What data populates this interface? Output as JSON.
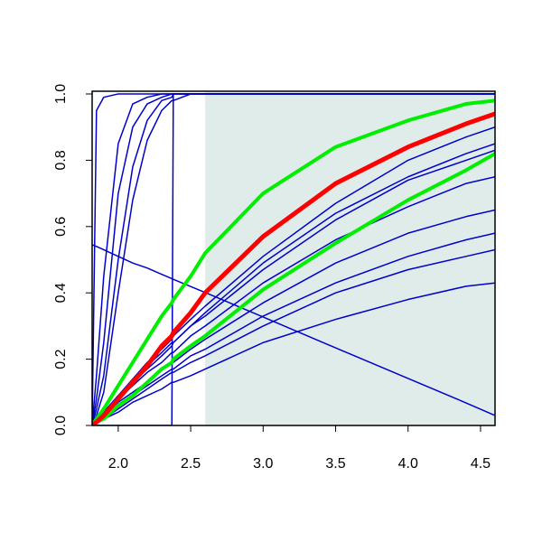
{
  "chart_data": {
    "type": "line",
    "x": [
      1.82,
      1.85,
      1.9,
      2.0,
      2.1,
      2.2,
      2.3,
      2.37,
      2.38,
      2.5,
      2.6,
      3.0,
      3.5,
      4.0,
      4.4,
      4.6
    ],
    "xlim": [
      1.82,
      4.6
    ],
    "ylim": [
      0,
      1
    ],
    "xticks": [
      {
        "value": 2,
        "label": "2.0"
      },
      2.5,
      {
        "value": 3,
        "label": "3.0"
      },
      3.5,
      {
        "value": 4,
        "label": "4.0"
      },
      4.5
    ],
    "yticks": [
      {
        "value": 0,
        "label": "0.0"
      },
      0.2,
      0.4,
      0.6,
      0.8,
      {
        "value": 1,
        "label": "1.0"
      }
    ],
    "shaded_region": {
      "x": [
        2.6,
        4.6
      ],
      "color": "#e0ecea"
    },
    "series": [
      {
        "color": "#0000cd",
        "line_width": 1.5,
        "values": [
          0,
          0.95,
          0.99,
          1,
          1,
          1,
          1,
          1,
          1,
          1,
          1,
          1,
          1,
          1,
          1,
          1
        ]
      },
      {
        "color": "#0000cd",
        "line_width": 1.5,
        "values": [
          0,
          0.15,
          0.45,
          0.85,
          0.97,
          0.99,
          1,
          1,
          1,
          1,
          1,
          1,
          1,
          1,
          1,
          1
        ]
      },
      {
        "color": "#0000cd",
        "line_width": 1.5,
        "values": [
          0,
          0.08,
          0.25,
          0.7,
          0.9,
          0.97,
          0.99,
          1,
          1,
          1,
          1,
          1,
          1,
          1,
          1,
          1
        ]
      },
      {
        "color": "#0000cd",
        "line_width": 1.5,
        "values": [
          0,
          0.05,
          0.15,
          0.5,
          0.78,
          0.92,
          0.98,
          0.99,
          1,
          1,
          1,
          1,
          1,
          1,
          1,
          1
        ]
      },
      {
        "color": "#0000cd",
        "line_width": 1.5,
        "values": [
          0,
          0.03,
          0.1,
          0.4,
          0.68,
          0.86,
          0.95,
          0.98,
          0.98,
          1,
          1,
          1,
          1,
          1,
          1,
          1
        ]
      },
      {
        "color": "#0000cd",
        "line_width": 1.5,
        "values": [
          0,
          0,
          0,
          0,
          0,
          0,
          0,
          0,
          1,
          1,
          1,
          1,
          1,
          1,
          1,
          1
        ]
      },
      {
        "color": "#0000cd",
        "line_width": 1.5,
        "values": [
          0.545,
          0.54,
          0.53,
          0.51,
          0.49,
          0.475,
          0.456,
          0.443,
          0.441,
          0.419,
          0.401,
          0.327,
          0.234,
          0.142,
          0.068,
          0.03
        ]
      },
      {
        "color": "#0000cd",
        "line_width": 1.5,
        "values": [
          0,
          0.02,
          0.04,
          0.09,
          0.14,
          0.19,
          0.23,
          0.26,
          0.27,
          0.32,
          0.36,
          0.51,
          0.67,
          0.8,
          0.87,
          0.9
        ]
      },
      {
        "color": "#0000cd",
        "line_width": 1.5,
        "values": [
          0,
          0.01,
          0.04,
          0.09,
          0.13,
          0.18,
          0.22,
          0.25,
          0.25,
          0.3,
          0.34,
          0.49,
          0.64,
          0.75,
          0.82,
          0.85
        ]
      },
      {
        "color": "#0000cd",
        "line_width": 1.5,
        "values": [
          0,
          0.01,
          0.04,
          0.08,
          0.13,
          0.17,
          0.21,
          0.24,
          0.25,
          0.3,
          0.33,
          0.47,
          0.62,
          0.74,
          0.8,
          0.83
        ]
      },
      {
        "color": "#0000cd",
        "line_width": 1.5,
        "values": [
          0,
          0.01,
          0.03,
          0.08,
          0.12,
          0.16,
          0.19,
          0.22,
          0.22,
          0.27,
          0.3,
          0.43,
          0.56,
          0.66,
          0.73,
          0.75
        ]
      },
      {
        "color": "#0000cd",
        "line_width": 1.5,
        "values": [
          0,
          0.01,
          0.03,
          0.07,
          0.1,
          0.13,
          0.17,
          0.19,
          0.19,
          0.23,
          0.26,
          0.37,
          0.49,
          0.58,
          0.63,
          0.65
        ]
      },
      {
        "color": "#0000cd",
        "line_width": 1.5,
        "values": [
          0,
          0.01,
          0.03,
          0.06,
          0.09,
          0.12,
          0.15,
          0.17,
          0.17,
          0.21,
          0.23,
          0.33,
          0.43,
          0.51,
          0.56,
          0.58
        ]
      },
      {
        "color": "#0000cd",
        "line_width": 1.5,
        "values": [
          0,
          0.01,
          0.02,
          0.05,
          0.08,
          0.11,
          0.14,
          0.16,
          0.16,
          0.19,
          0.21,
          0.3,
          0.4,
          0.47,
          0.51,
          0.53
        ]
      },
      {
        "color": "#0000cd",
        "line_width": 1.5,
        "values": [
          0,
          0.01,
          0.02,
          0.04,
          0.07,
          0.09,
          0.11,
          0.13,
          0.13,
          0.15,
          0.17,
          0.25,
          0.32,
          0.38,
          0.42,
          0.43
        ]
      },
      {
        "color": "#00ee00",
        "line_width": 4,
        "values": [
          0,
          0.02,
          0.05,
          0.12,
          0.19,
          0.26,
          0.33,
          0.37,
          0.38,
          0.45,
          0.52,
          0.7,
          0.84,
          0.92,
          0.97,
          0.98
        ]
      },
      {
        "color": "#00ee00",
        "line_width": 4,
        "values": [
          0,
          0.01,
          0.02,
          0.06,
          0.09,
          0.13,
          0.17,
          0.19,
          0.2,
          0.24,
          0.27,
          0.41,
          0.55,
          0.68,
          0.77,
          0.82
        ]
      },
      {
        "color": "#ff0000",
        "line_width": 5,
        "values": [
          0,
          0.01,
          0.03,
          0.08,
          0.13,
          0.18,
          0.24,
          0.27,
          0.28,
          0.34,
          0.4,
          0.57,
          0.73,
          0.84,
          0.91,
          0.94
        ]
      }
    ]
  }
}
